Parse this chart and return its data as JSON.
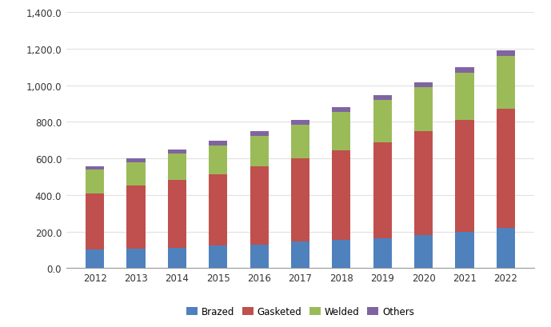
{
  "years": [
    2012,
    2013,
    2014,
    2015,
    2016,
    2017,
    2018,
    2019,
    2020,
    2021,
    2022
  ],
  "brazed": [
    100,
    105,
    112,
    125,
    130,
    145,
    155,
    165,
    180,
    200,
    220
  ],
  "gasketed": [
    310,
    345,
    370,
    390,
    425,
    455,
    490,
    525,
    570,
    610,
    650
  ],
  "welded": [
    130,
    130,
    145,
    155,
    170,
    185,
    210,
    230,
    240,
    260,
    290
  ],
  "others": [
    18,
    20,
    23,
    25,
    25,
    25,
    25,
    25,
    25,
    30,
    30
  ],
  "colors": {
    "brazed": "#4f81bd",
    "gasketed": "#c0504d",
    "welded": "#9bbb59",
    "others": "#8064a2"
  },
  "ylim": [
    0,
    1400
  ],
  "yticks": [
    0,
    200,
    400,
    600,
    800,
    1000,
    1200,
    1400
  ],
  "ytick_labels": [
    "0.0",
    "200.0",
    "400.0",
    "600.0",
    "800.0",
    "1,000.0",
    "1,200.0",
    "1,400.0"
  ],
  "legend_labels": [
    "Brazed",
    "Gasketed",
    "Welded",
    "Others"
  ],
  "bg_color": "#ffffff",
  "bar_width": 0.45,
  "grid_color": "#e0e0e0"
}
